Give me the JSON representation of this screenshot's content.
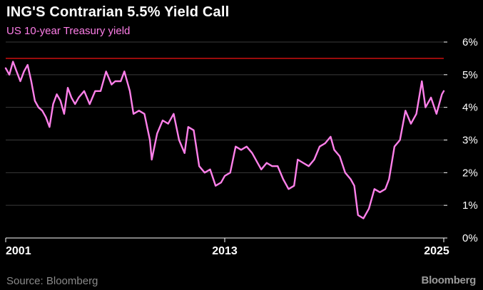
{
  "title": "ING'S Contrarian 5.5% Yield Call",
  "subtitle": "US 10-year Treasury yield",
  "source": "Source: Bloomberg",
  "brand": "Bloomberg",
  "colors": {
    "background": "#000000",
    "series": "#ff80ea",
    "reference_line": "#e01010",
    "grid": "#3a3a3a",
    "axis": "#ffffff"
  },
  "chart_data": {
    "type": "line",
    "title": "ING'S Contrarian 5.5% Yield Call",
    "subtitle": "US 10-year Treasury yield",
    "xlabel": "",
    "ylabel": "",
    "xlim": [
      2001.0,
      2025.0
    ],
    "ylim": [
      0,
      6
    ],
    "x_ticks": [
      2001,
      2013,
      2025
    ],
    "x_tick_labels": [
      "2001",
      "2013",
      "2025"
    ],
    "y_ticks": [
      0,
      1,
      2,
      3,
      4,
      5,
      6
    ],
    "y_tick_labels": [
      "0%",
      "1%",
      "2%",
      "3%",
      "4%",
      "5%",
      "6%"
    ],
    "y_axis_position": "right",
    "grid": "horizontal",
    "reference_lines": [
      {
        "y": 5.5
      }
    ],
    "series": [
      {
        "x": [
          2001.0,
          2001.2,
          2001.4,
          2001.6,
          2001.8,
          2002.0,
          2002.2,
          2002.4,
          2002.6,
          2002.8,
          2003.0,
          2003.2,
          2003.4,
          2003.6,
          2003.8,
          2004.0,
          2004.2,
          2004.4,
          2004.6,
          2004.8,
          2005.0,
          2005.3,
          2005.6,
          2005.9,
          2006.2,
          2006.5,
          2006.8,
          2007.0,
          2007.3,
          2007.5,
          2007.8,
          2008.0,
          2008.3,
          2008.6,
          2008.9,
          2009.0,
          2009.3,
          2009.6,
          2009.9,
          2010.2,
          2010.5,
          2010.8,
          2011.0,
          2011.3,
          2011.6,
          2011.9,
          2012.2,
          2012.5,
          2012.8,
          2013.0,
          2013.3,
          2013.6,
          2013.9,
          2014.2,
          2014.5,
          2014.8,
          2015.0,
          2015.3,
          2015.6,
          2015.9,
          2016.2,
          2016.5,
          2016.8,
          2017.0,
          2017.3,
          2017.6,
          2017.9,
          2018.2,
          2018.5,
          2018.8,
          2019.0,
          2019.3,
          2019.6,
          2019.9,
          2020.1,
          2020.3,
          2020.6,
          2020.9,
          2021.2,
          2021.5,
          2021.8,
          2022.0,
          2022.3,
          2022.6,
          2022.9,
          2023.2,
          2023.5,
          2023.8,
          2024.0,
          2024.3,
          2024.6,
          2024.9,
          2025.0
        ],
        "values": [
          5.2,
          5.0,
          5.4,
          5.1,
          4.8,
          5.1,
          5.3,
          4.8,
          4.2,
          4.0,
          3.9,
          3.7,
          3.4,
          4.1,
          4.4,
          4.2,
          3.8,
          4.6,
          4.3,
          4.1,
          4.3,
          4.5,
          4.1,
          4.5,
          4.5,
          5.1,
          4.7,
          4.8,
          4.8,
          5.1,
          4.5,
          3.8,
          3.9,
          3.8,
          3.0,
          2.4,
          3.2,
          3.6,
          3.5,
          3.8,
          3.0,
          2.6,
          3.4,
          3.3,
          2.2,
          2.0,
          2.1,
          1.6,
          1.7,
          1.9,
          2.0,
          2.8,
          2.7,
          2.8,
          2.6,
          2.3,
          2.1,
          2.3,
          2.2,
          2.2,
          1.8,
          1.5,
          1.6,
          2.4,
          2.3,
          2.2,
          2.4,
          2.8,
          2.9,
          3.1,
          2.7,
          2.5,
          2.0,
          1.8,
          1.6,
          0.7,
          0.6,
          0.9,
          1.5,
          1.4,
          1.5,
          1.8,
          2.8,
          3.0,
          3.9,
          3.5,
          3.8,
          4.8,
          4.0,
          4.3,
          3.8,
          4.4,
          4.5
        ]
      }
    ]
  }
}
